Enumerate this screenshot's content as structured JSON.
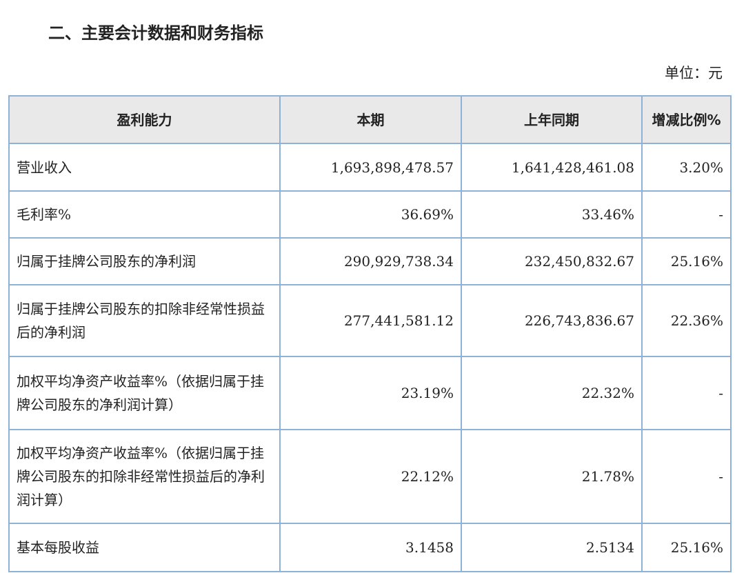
{
  "header": {
    "title": "二、主要会计数据和财务指标",
    "unit": "单位：元"
  },
  "table": {
    "columns": [
      "盈利能力",
      "本期",
      "上年同期",
      "增减比例%"
    ],
    "rows": [
      [
        "营业收入",
        "1,693,898,478.57",
        "1,641,428,461.08",
        "3.20%"
      ],
      [
        "毛利率%",
        "36.69%",
        "33.46%",
        "-"
      ],
      [
        "归属于挂牌公司股东的净利润",
        "290,929,738.34",
        "232,450,832.67",
        "25.16%"
      ],
      [
        "归属于挂牌公司股东的扣除非经常性损益后的净利润",
        "277,441,581.12",
        "226,743,836.67",
        "22.36%"
      ],
      [
        "加权平均净资产收益率%（依据归属于挂牌公司股东的净利润计算）",
        "23.19%",
        "22.32%",
        "-"
      ],
      [
        "加权平均净资产收益率%（依据归属于挂牌公司股东的扣除非经常性损益后的净利润计算）",
        "22.12%",
        "21.78%",
        "-"
      ],
      [
        "基本每股收益",
        "3.1458",
        "2.5134",
        "25.16%"
      ]
    ]
  }
}
